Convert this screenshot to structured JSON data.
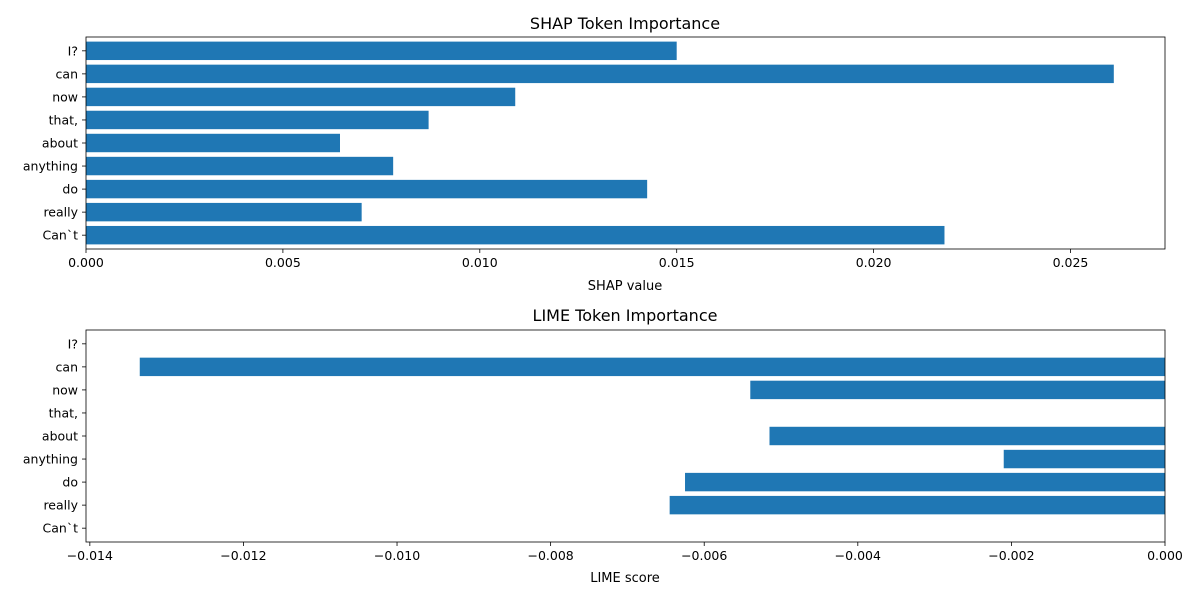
{
  "colors": {
    "bar": "#1f77b4",
    "axis": "#000000",
    "background": "#ffffff"
  },
  "chart_data": [
    {
      "type": "bar",
      "orientation": "horizontal",
      "title": "SHAP Token Importance",
      "xlabel": "SHAP value",
      "ylabel": "",
      "categories": [
        "Can`t",
        "really",
        "do",
        "anything",
        "about",
        "that,",
        "now",
        "can",
        "I?"
      ],
      "values": [
        0.0218,
        0.007,
        0.01425,
        0.0078,
        0.00645,
        0.0087,
        0.0109,
        0.0261,
        0.015
      ],
      "xlim": [
        0,
        0.0274
      ],
      "xticks": [
        0,
        0.005,
        0.01,
        0.015,
        0.02,
        0.025
      ],
      "xtick_labels": [
        "0.000",
        "0.005",
        "0.010",
        "0.015",
        "0.020",
        "0.025"
      ],
      "grid": false,
      "legend": "none"
    },
    {
      "type": "bar",
      "orientation": "horizontal",
      "title": "LIME Token Importance",
      "xlabel": "LIME score",
      "ylabel": "",
      "categories": [
        "Can`t",
        "really",
        "do",
        "anything",
        "about",
        "that,",
        "now",
        "can",
        "I?"
      ],
      "values": [
        0,
        -0.00645,
        -0.00625,
        -0.0021,
        -0.00515,
        0,
        -0.0054,
        -0.01335,
        0
      ],
      "xlim": [
        -0.01405,
        0
      ],
      "xticks": [
        -0.014,
        -0.012,
        -0.01,
        -0.008,
        -0.006,
        -0.004,
        -0.002,
        0.0
      ],
      "xtick_labels": [
        "−0.014",
        "−0.012",
        "−0.010",
        "−0.008",
        "−0.006",
        "−0.004",
        "−0.002",
        "0.000"
      ],
      "grid": false,
      "legend": "none"
    }
  ]
}
